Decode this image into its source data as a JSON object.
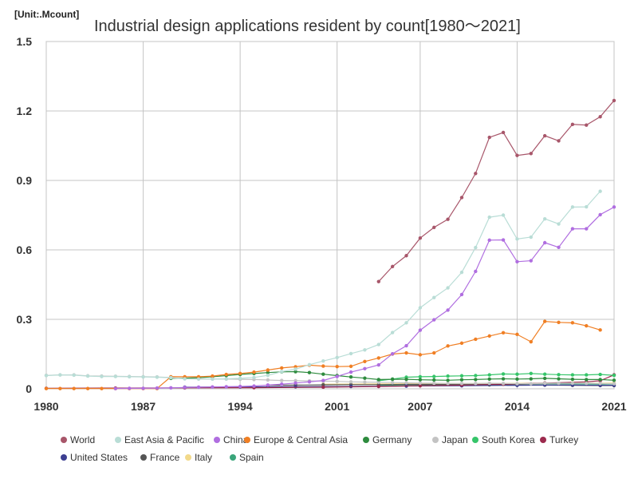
{
  "unit_label": "[Unit:.Mcount]",
  "chart_data": {
    "type": "line",
    "title": "Industrial design applications resident by count[1980～2021]",
    "xlabel": "",
    "ylabel": "",
    "xlim": [
      1980,
      2021
    ],
    "ylim": [
      0,
      1.5
    ],
    "x_ticks": [
      1980,
      1987,
      1994,
      2001,
      2007,
      2014,
      2021
    ],
    "y_ticks": [
      0,
      0.3,
      0.6,
      0.9,
      1.2,
      1.5
    ],
    "y_tick_labels": [
      "0",
      "0.3",
      "0.6",
      "0.9",
      "1.2",
      "1.5"
    ],
    "grid": true,
    "legend_position": "bottom",
    "series": [
      {
        "name": "World",
        "color": "#a8566a",
        "points": [
          [
            2004,
            0.463
          ],
          [
            2005,
            0.528
          ],
          [
            2006,
            0.575
          ],
          [
            2007,
            0.651
          ],
          [
            2008,
            0.697
          ],
          [
            2009,
            0.732
          ],
          [
            2010,
            0.826
          ],
          [
            2011,
            0.93
          ],
          [
            2012,
            1.086
          ],
          [
            2013,
            1.107
          ],
          [
            2014,
            1.008
          ],
          [
            2015,
            1.016
          ],
          [
            2016,
            1.093
          ],
          [
            2017,
            1.071
          ],
          [
            2018,
            1.142
          ],
          [
            2019,
            1.139
          ],
          [
            2020,
            1.175
          ],
          [
            2021,
            1.245
          ]
        ]
      },
      {
        "name": "East Asia & Pacific",
        "color": "#b9ddd6",
        "points": [
          [
            1980,
            0.057
          ],
          [
            1981,
            0.06
          ],
          [
            1982,
            0.059
          ],
          [
            1983,
            0.055
          ],
          [
            1984,
            0.053
          ],
          [
            1985,
            0.053
          ],
          [
            1986,
            0.052
          ],
          [
            1987,
            0.051
          ],
          [
            1988,
            0.05
          ],
          [
            1989,
            0.048
          ],
          [
            1990,
            0.043
          ],
          [
            1991,
            0.042
          ],
          [
            1992,
            0.042
          ],
          [
            1993,
            0.043
          ],
          [
            1994,
            0.045
          ],
          [
            1995,
            0.049
          ],
          [
            1996,
            0.058
          ],
          [
            1997,
            0.074
          ],
          [
            1998,
            0.085
          ],
          [
            1999,
            0.104
          ],
          [
            2000,
            0.12
          ],
          [
            2001,
            0.135
          ],
          [
            2002,
            0.152
          ],
          [
            2003,
            0.168
          ],
          [
            2004,
            0.191
          ],
          [
            2005,
            0.243
          ],
          [
            2006,
            0.285
          ],
          [
            2007,
            0.35
          ],
          [
            2008,
            0.394
          ],
          [
            2009,
            0.436
          ],
          [
            2010,
            0.503
          ],
          [
            2011,
            0.61
          ],
          [
            2012,
            0.741
          ],
          [
            2013,
            0.75
          ],
          [
            2014,
            0.647
          ],
          [
            2015,
            0.655
          ],
          [
            2016,
            0.734
          ],
          [
            2017,
            0.712
          ],
          [
            2018,
            0.785
          ],
          [
            2019,
            0.786
          ],
          [
            2020,
            0.853
          ]
        ]
      },
      {
        "name": "China",
        "color": "#b06ee0",
        "points": [
          [
            1985,
            0.001
          ],
          [
            1986,
            0.002
          ],
          [
            1987,
            0.002
          ],
          [
            1988,
            0.003
          ],
          [
            1989,
            0.004
          ],
          [
            1990,
            0.006
          ],
          [
            1991,
            0.007
          ],
          [
            1992,
            0.008
          ],
          [
            1993,
            0.009
          ],
          [
            1994,
            0.01
          ],
          [
            1995,
            0.012
          ],
          [
            1996,
            0.016
          ],
          [
            1997,
            0.02
          ],
          [
            1998,
            0.025
          ],
          [
            1999,
            0.03
          ],
          [
            2000,
            0.036
          ],
          [
            2001,
            0.053
          ],
          [
            2002,
            0.072
          ],
          [
            2003,
            0.087
          ],
          [
            2004,
            0.103
          ],
          [
            2005,
            0.151
          ],
          [
            2006,
            0.186
          ],
          [
            2007,
            0.253
          ],
          [
            2008,
            0.298
          ],
          [
            2009,
            0.34
          ],
          [
            2010,
            0.407
          ],
          [
            2011,
            0.507
          ],
          [
            2012,
            0.642
          ],
          [
            2013,
            0.643
          ],
          [
            2014,
            0.549
          ],
          [
            2015,
            0.553
          ],
          [
            2016,
            0.631
          ],
          [
            2017,
            0.611
          ],
          [
            2018,
            0.691
          ],
          [
            2019,
            0.691
          ],
          [
            2020,
            0.752
          ],
          [
            2021,
            0.785
          ]
        ]
      },
      {
        "name": "Europe & Central Asia",
        "color": "#f07f24",
        "points": [
          [
            1980,
            0.001
          ],
          [
            1981,
            0.001
          ],
          [
            1982,
            0.001
          ],
          [
            1983,
            0.001
          ],
          [
            1984,
            0.001
          ],
          [
            1985,
            0.001
          ],
          [
            1986,
            0.001
          ],
          [
            1987,
            0.001
          ],
          [
            1988,
            0.001
          ],
          [
            1989,
            0.052
          ],
          [
            1990,
            0.052
          ],
          [
            1991,
            0.052
          ],
          [
            1992,
            0.055
          ],
          [
            1993,
            0.062
          ],
          [
            1994,
            0.066
          ],
          [
            1995,
            0.072
          ],
          [
            1996,
            0.081
          ],
          [
            1997,
            0.09
          ],
          [
            1998,
            0.095
          ],
          [
            1999,
            0.102
          ],
          [
            2000,
            0.098
          ],
          [
            2001,
            0.096
          ],
          [
            2002,
            0.097
          ],
          [
            2003,
            0.118
          ],
          [
            2004,
            0.133
          ],
          [
            2005,
            0.15
          ],
          [
            2006,
            0.155
          ],
          [
            2007,
            0.147
          ],
          [
            2008,
            0.155
          ],
          [
            2009,
            0.185
          ],
          [
            2010,
            0.197
          ],
          [
            2011,
            0.214
          ],
          [
            2012,
            0.228
          ],
          [
            2013,
            0.242
          ],
          [
            2014,
            0.235
          ],
          [
            2015,
            0.203
          ],
          [
            2016,
            0.291
          ],
          [
            2017,
            0.287
          ],
          [
            2018,
            0.285
          ],
          [
            2019,
            0.272
          ],
          [
            2020,
            0.254
          ]
        ]
      },
      {
        "name": "Germany",
        "color": "#2e8b3e",
        "points": [
          [
            1989,
            0.045
          ],
          [
            1990,
            0.046
          ],
          [
            1991,
            0.048
          ],
          [
            1992,
            0.052
          ],
          [
            1993,
            0.057
          ],
          [
            1994,
            0.062
          ],
          [
            1995,
            0.066
          ],
          [
            1996,
            0.07
          ],
          [
            1997,
            0.073
          ],
          [
            1998,
            0.074
          ],
          [
            1999,
            0.07
          ],
          [
            2000,
            0.063
          ],
          [
            2001,
            0.057
          ],
          [
            2002,
            0.051
          ],
          [
            2003,
            0.046
          ],
          [
            2004,
            0.04
          ],
          [
            2005,
            0.041
          ],
          [
            2006,
            0.041
          ],
          [
            2007,
            0.039
          ],
          [
            2008,
            0.038
          ],
          [
            2009,
            0.037
          ],
          [
            2010,
            0.039
          ],
          [
            2011,
            0.04
          ],
          [
            2012,
            0.042
          ],
          [
            2013,
            0.043
          ],
          [
            2014,
            0.042
          ],
          [
            2015,
            0.043
          ],
          [
            2016,
            0.045
          ],
          [
            2017,
            0.043
          ],
          [
            2018,
            0.041
          ],
          [
            2019,
            0.04
          ],
          [
            2020,
            0.04
          ],
          [
            2021,
            0.037
          ]
        ]
      },
      {
        "name": "Japan",
        "color": "#c3c3c3",
        "points": [
          [
            1980,
            0.058
          ],
          [
            1981,
            0.06
          ],
          [
            1982,
            0.06
          ],
          [
            1983,
            0.056
          ],
          [
            1984,
            0.055
          ],
          [
            1985,
            0.054
          ],
          [
            1986,
            0.053
          ],
          [
            1987,
            0.052
          ],
          [
            1988,
            0.051
          ],
          [
            1989,
            0.049
          ],
          [
            1990,
            0.044
          ],
          [
            1991,
            0.043
          ],
          [
            1992,
            0.042
          ],
          [
            1993,
            0.042
          ],
          [
            1994,
            0.041
          ],
          [
            1995,
            0.04
          ],
          [
            1996,
            0.038
          ],
          [
            1997,
            0.036
          ],
          [
            1998,
            0.035
          ],
          [
            1999,
            0.034
          ],
          [
            2000,
            0.033
          ],
          [
            2001,
            0.032
          ],
          [
            2002,
            0.03
          ],
          [
            2003,
            0.029
          ],
          [
            2004,
            0.028
          ],
          [
            2005,
            0.027
          ],
          [
            2006,
            0.026
          ],
          [
            2007,
            0.025
          ],
          [
            2008,
            0.024
          ],
          [
            2009,
            0.023
          ],
          [
            2010,
            0.023
          ],
          [
            2011,
            0.023
          ],
          [
            2012,
            0.024
          ],
          [
            2013,
            0.023
          ],
          [
            2014,
            0.022
          ],
          [
            2015,
            0.022
          ],
          [
            2016,
            0.024
          ],
          [
            2017,
            0.024
          ],
          [
            2018,
            0.024
          ],
          [
            2019,
            0.024
          ],
          [
            2020,
            0.023
          ],
          [
            2021,
            0.022
          ]
        ]
      },
      {
        "name": "South Korea",
        "color": "#36c56a",
        "points": [
          [
            2004,
            0.035
          ],
          [
            2005,
            0.042
          ],
          [
            2006,
            0.05
          ],
          [
            2007,
            0.052
          ],
          [
            2008,
            0.053
          ],
          [
            2009,
            0.055
          ],
          [
            2010,
            0.056
          ],
          [
            2011,
            0.057
          ],
          [
            2012,
            0.06
          ],
          [
            2013,
            0.064
          ],
          [
            2014,
            0.063
          ],
          [
            2015,
            0.066
          ],
          [
            2016,
            0.063
          ],
          [
            2017,
            0.061
          ],
          [
            2018,
            0.06
          ],
          [
            2019,
            0.06
          ],
          [
            2020,
            0.062
          ],
          [
            2021,
            0.058
          ]
        ]
      },
      {
        "name": "Turkey",
        "color": "#9c2b4e",
        "points": [
          [
            1980,
            0.002
          ],
          [
            1985,
            0.003
          ],
          [
            1990,
            0.004
          ],
          [
            1995,
            0.005
          ],
          [
            2000,
            0.007
          ],
          [
            2004,
            0.01
          ],
          [
            2007,
            0.013
          ],
          [
            2010,
            0.016
          ],
          [
            2013,
            0.02
          ],
          [
            2016,
            0.025
          ],
          [
            2019,
            0.03
          ],
          [
            2020,
            0.035
          ],
          [
            2021,
            0.06
          ]
        ]
      },
      {
        "name": "United States",
        "color": "#3d3f91",
        "points": [
          [
            1990,
            0.007
          ],
          [
            1994,
            0.008
          ],
          [
            1998,
            0.009
          ],
          [
            2002,
            0.01
          ],
          [
            2006,
            0.012
          ],
          [
            2010,
            0.013
          ],
          [
            2014,
            0.015
          ],
          [
            2016,
            0.016
          ],
          [
            2018,
            0.016
          ],
          [
            2020,
            0.015
          ],
          [
            2021,
            0.015
          ]
        ]
      },
      {
        "name": "France",
        "color": "#555555",
        "points": [
          [
            1996,
            0.015
          ],
          [
            1998,
            0.016
          ],
          [
            2000,
            0.017
          ],
          [
            2002,
            0.018
          ],
          [
            2004,
            0.018
          ],
          [
            2006,
            0.019
          ],
          [
            2008,
            0.019
          ],
          [
            2010,
            0.018
          ],
          [
            2012,
            0.017
          ],
          [
            2014,
            0.017
          ],
          [
            2016,
            0.016
          ],
          [
            2018,
            0.015
          ],
          [
            2020,
            0.014
          ],
          [
            2021,
            0.014
          ]
        ]
      },
      {
        "name": "Italy",
        "color": "#f2d98a",
        "points": [
          [
            2000,
            0.02
          ],
          [
            2004,
            0.021
          ],
          [
            2008,
            0.022
          ],
          [
            2012,
            0.023
          ],
          [
            2016,
            0.024
          ],
          [
            2018,
            0.025
          ],
          [
            2020,
            0.024
          ],
          [
            2021,
            0.025
          ]
        ]
      },
      {
        "name": "Spain",
        "color": "#3aa57a",
        "points": [
          [
            2004,
            0.015
          ],
          [
            2008,
            0.018
          ],
          [
            2012,
            0.02
          ],
          [
            2016,
            0.022
          ],
          [
            2018,
            0.021
          ],
          [
            2020,
            0.02
          ],
          [
            2021,
            0.021
          ]
        ]
      }
    ]
  }
}
